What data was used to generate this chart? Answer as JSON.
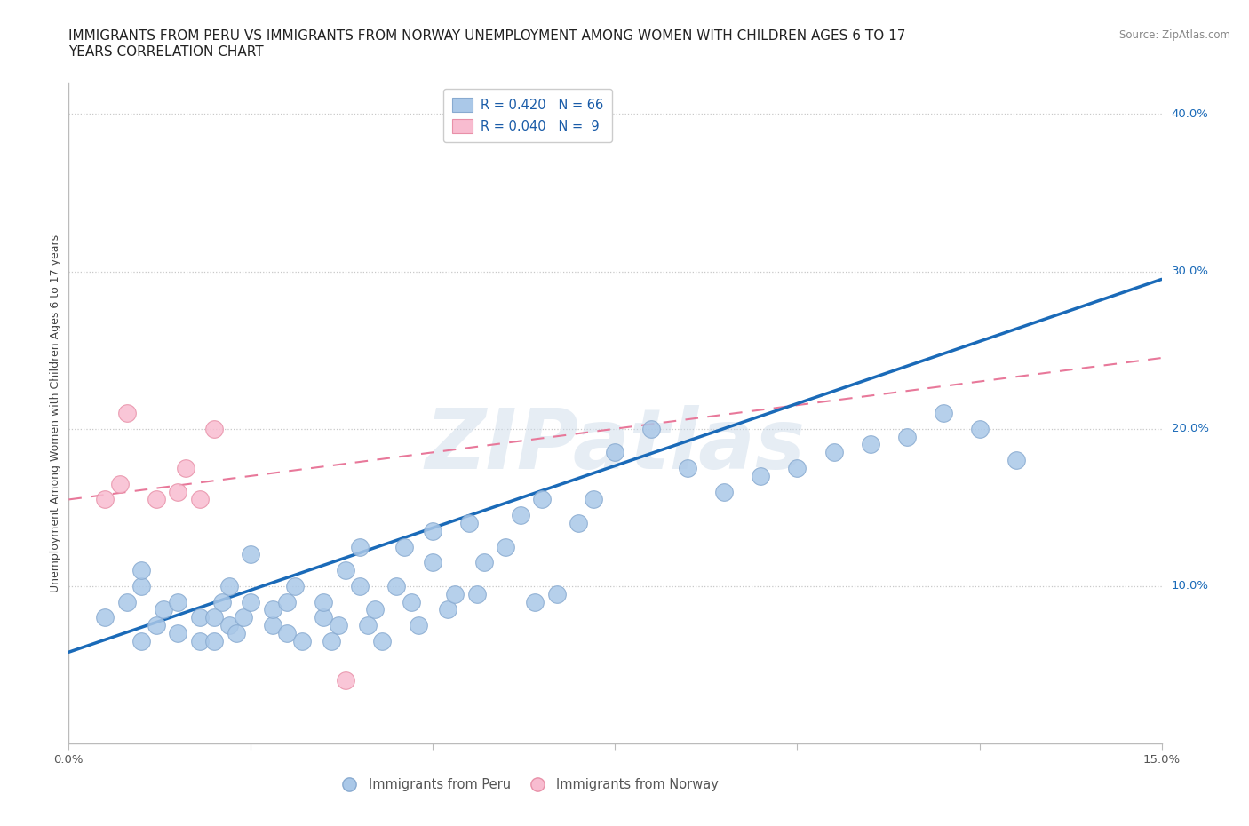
{
  "title_line1": "IMMIGRANTS FROM PERU VS IMMIGRANTS FROM NORWAY UNEMPLOYMENT AMONG WOMEN WITH CHILDREN AGES 6 TO 17",
  "title_line2": "YEARS CORRELATION CHART",
  "source": "Source: ZipAtlas.com",
  "ylabel": "Unemployment Among Women with Children Ages 6 to 17 years",
  "xlim": [
    0.0,
    0.15
  ],
  "ylim": [
    0.0,
    0.42
  ],
  "xticks": [
    0.0,
    0.025,
    0.05,
    0.075,
    0.1,
    0.125,
    0.15
  ],
  "yticks": [
    0.0,
    0.1,
    0.2,
    0.3,
    0.4
  ],
  "yticklabels_right": [
    "",
    "10.0%",
    "20.0%",
    "30.0%",
    "40.0%"
  ],
  "grid_color": "#c8c8c8",
  "watermark": "ZIPatlas",
  "peru_color": "#aac8e8",
  "peru_edge_color": "#88aad0",
  "norway_color": "#f8bcd0",
  "norway_edge_color": "#e890a8",
  "peru_line_color": "#1a6ab8",
  "norway_line_color": "#e8789a",
  "peru_R": 0.42,
  "peru_N": 66,
  "norway_R": 0.04,
  "norway_N": 9,
  "legend_text_color": "#1a5ca8",
  "peru_scatter_x": [
    0.005,
    0.008,
    0.01,
    0.01,
    0.01,
    0.012,
    0.013,
    0.015,
    0.015,
    0.018,
    0.018,
    0.02,
    0.02,
    0.021,
    0.022,
    0.022,
    0.023,
    0.024,
    0.025,
    0.025,
    0.028,
    0.028,
    0.03,
    0.03,
    0.031,
    0.032,
    0.035,
    0.035,
    0.036,
    0.037,
    0.038,
    0.04,
    0.04,
    0.041,
    0.042,
    0.043,
    0.045,
    0.046,
    0.047,
    0.048,
    0.05,
    0.05,
    0.052,
    0.053,
    0.055,
    0.056,
    0.057,
    0.06,
    0.062,
    0.064,
    0.065,
    0.067,
    0.07,
    0.072,
    0.075,
    0.08,
    0.085,
    0.09,
    0.095,
    0.1,
    0.105,
    0.11,
    0.115,
    0.12,
    0.125,
    0.13
  ],
  "peru_scatter_y": [
    0.08,
    0.09,
    0.065,
    0.1,
    0.11,
    0.075,
    0.085,
    0.07,
    0.09,
    0.08,
    0.065,
    0.08,
    0.065,
    0.09,
    0.075,
    0.1,
    0.07,
    0.08,
    0.09,
    0.12,
    0.075,
    0.085,
    0.07,
    0.09,
    0.1,
    0.065,
    0.08,
    0.09,
    0.065,
    0.075,
    0.11,
    0.1,
    0.125,
    0.075,
    0.085,
    0.065,
    0.1,
    0.125,
    0.09,
    0.075,
    0.115,
    0.135,
    0.085,
    0.095,
    0.14,
    0.095,
    0.115,
    0.125,
    0.145,
    0.09,
    0.155,
    0.095,
    0.14,
    0.155,
    0.185,
    0.2,
    0.175,
    0.16,
    0.17,
    0.175,
    0.185,
    0.19,
    0.195,
    0.21,
    0.2,
    0.18
  ],
  "norway_scatter_x": [
    0.005,
    0.007,
    0.008,
    0.012,
    0.015,
    0.016,
    0.018,
    0.02,
    0.038
  ],
  "norway_scatter_y": [
    0.155,
    0.165,
    0.21,
    0.155,
    0.16,
    0.175,
    0.155,
    0.2,
    0.04
  ],
  "peru_line_x": [
    0.0,
    0.15
  ],
  "peru_line_y": [
    0.058,
    0.295
  ],
  "norway_line_x": [
    0.0,
    0.15
  ],
  "norway_line_y": [
    0.155,
    0.245
  ],
  "legend_peru_label": "Immigrants from Peru",
  "legend_norway_label": "Immigrants from Norway",
  "title_fontsize": 11,
  "axis_label_fontsize": 9,
  "tick_fontsize": 9.5,
  "legend_fontsize": 10.5,
  "background_color": "#ffffff"
}
